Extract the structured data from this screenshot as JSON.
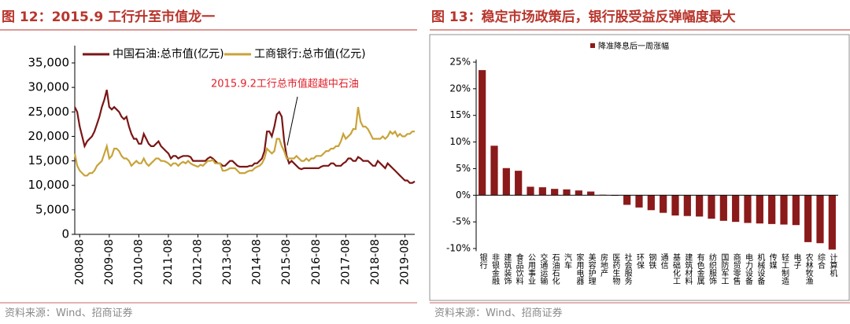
{
  "chart_data": [
    {
      "type": "line",
      "title": "图 12：2015.9 工行升至市值龙一",
      "source": "资料来源：Wind、招商证券",
      "annotation": "2015.9.2工行总市值超越中石油",
      "x": [
        "2008-06",
        "2008-07",
        "2008-08",
        "2008-09",
        "2008-10",
        "2008-11",
        "2008-12",
        "2009-01",
        "2009-02",
        "2009-03",
        "2009-04",
        "2009-05",
        "2009-06",
        "2009-07",
        "2009-08",
        "2009-09",
        "2009-10",
        "2009-11",
        "2009-12",
        "2010-01",
        "2010-02",
        "2010-03",
        "2010-04",
        "2010-05",
        "2010-06",
        "2010-07",
        "2010-08",
        "2010-09",
        "2010-10",
        "2010-11",
        "2010-12",
        "2011-01",
        "2011-02",
        "2011-03",
        "2011-04",
        "2011-05",
        "2011-06",
        "2011-07",
        "2011-08",
        "2011-09",
        "2011-10",
        "2011-11",
        "2011-12",
        "2012-01",
        "2012-02",
        "2012-03",
        "2012-04",
        "2012-05",
        "2012-06",
        "2012-07",
        "2012-08",
        "2012-09",
        "2012-10",
        "2012-11",
        "2012-12",
        "2013-01",
        "2013-02",
        "2013-03",
        "2013-04",
        "2013-05",
        "2013-06",
        "2013-07",
        "2013-08",
        "2013-09",
        "2013-10",
        "2013-11",
        "2013-12",
        "2014-01",
        "2014-02",
        "2014-03",
        "2014-04",
        "2014-05",
        "2014-06",
        "2014-07",
        "2014-08",
        "2014-09",
        "2014-10",
        "2014-11",
        "2014-12",
        "2015-01",
        "2015-02",
        "2015-03",
        "2015-04",
        "2015-05",
        "2015-06",
        "2015-07",
        "2015-08",
        "2015-09",
        "2015-10",
        "2015-11",
        "2015-12",
        "2016-01",
        "2016-02",
        "2016-03",
        "2016-04",
        "2016-05",
        "2016-06",
        "2016-07",
        "2016-08",
        "2016-09",
        "2016-10",
        "2016-11",
        "2016-12",
        "2017-01",
        "2017-02",
        "2017-03",
        "2017-04",
        "2017-05",
        "2017-06",
        "2017-07",
        "2017-08",
        "2017-09",
        "2017-10",
        "2017-11",
        "2017-12",
        "2018-01",
        "2018-02",
        "2018-03",
        "2018-04",
        "2018-05",
        "2018-06",
        "2018-07",
        "2018-08",
        "2018-09",
        "2018-10",
        "2018-11",
        "2018-12",
        "2019-01",
        "2019-02",
        "2019-03",
        "2019-04",
        "2019-05",
        "2019-06",
        "2019-07",
        "2019-08",
        "2019-09",
        "2019-10",
        "2019-11",
        "2019-12"
      ],
      "xlim": [
        "2008-06",
        "2019-12"
      ],
      "xticks": [
        "2008-08",
        "2009-08",
        "2010-08",
        "2011-08",
        "2012-08",
        "2013-08",
        "2014-08",
        "2015-08",
        "2016-08",
        "2017-08",
        "2018-08",
        "2019-08"
      ],
      "ylim": [
        0,
        35000
      ],
      "yticks": [
        0,
        {
          "value": 5000,
          "label": "5,000"
        },
        {
          "value": 10000,
          "label": "10,000"
        },
        {
          "value": 15000,
          "label": "15,000"
        },
        {
          "value": 20000,
          "label": "20,000"
        },
        {
          "value": 25000,
          "label": "25,000"
        },
        {
          "value": 30000,
          "label": "30,000"
        },
        {
          "value": 35000,
          "label": "35,000"
        }
      ],
      "series": [
        {
          "name": "中国石油:总市值(亿元)",
          "color": "#7a1616",
          "values": [
            26000,
            25000,
            22000,
            20000,
            18000,
            19000,
            19500,
            20000,
            21000,
            22500,
            24000,
            26000,
            27500,
            29500,
            26000,
            25500,
            26000,
            25500,
            25000,
            24000,
            23500,
            24000,
            22000,
            20500,
            19500,
            19500,
            18500,
            18500,
            20500,
            19500,
            18500,
            18000,
            18000,
            18500,
            19000,
            18000,
            17500,
            17000,
            16500,
            15500,
            16000,
            16000,
            15500,
            15800,
            16000,
            16000,
            16000,
            15800,
            15000,
            15000,
            15000,
            15000,
            15000,
            15000,
            15500,
            15800,
            15500,
            15000,
            14500,
            14500,
            14000,
            14000,
            14500,
            15000,
            15000,
            14500,
            14000,
            13800,
            13800,
            13800,
            13800,
            14000,
            14000,
            14500,
            14500,
            15000,
            15500,
            17000,
            21000,
            21000,
            20000,
            22000,
            24500,
            25000,
            24000,
            19000,
            16000,
            14500,
            15000,
            14500,
            14000,
            13500,
            13300,
            13500,
            13500,
            13500,
            13500,
            13500,
            13500,
            13500,
            13800,
            14000,
            14000,
            14000,
            14500,
            14500,
            14000,
            14000,
            14000,
            14500,
            14800,
            15500,
            15500,
            15000,
            15000,
            15800,
            15500,
            15000,
            15000,
            15000,
            14500,
            14000,
            14000,
            15000,
            14500,
            14000,
            13500,
            14500,
            14000,
            13500,
            13000,
            12500,
            12000,
            11500,
            11000,
            11000,
            10500,
            10500,
            10800
          ]
        },
        {
          "name": "工商银行:总市值(亿元)",
          "color": "#c9a33a",
          "values": [
            16500,
            14000,
            13000,
            12500,
            12000,
            12000,
            12500,
            12500,
            13000,
            14000,
            14500,
            15000,
            16500,
            18000,
            15500,
            16000,
            17500,
            17500,
            17000,
            16000,
            15500,
            15500,
            15000,
            14000,
            14500,
            15000,
            14500,
            14500,
            15500,
            14500,
            14000,
            14500,
            15000,
            15500,
            15500,
            15000,
            15000,
            14800,
            14500,
            14000,
            14500,
            14500,
            14000,
            14500,
            14800,
            14500,
            15000,
            14500,
            14200,
            14000,
            13800,
            14200,
            14000,
            14500,
            15000,
            15000,
            15200,
            14500,
            14500,
            14500,
            13000,
            13000,
            13200,
            13500,
            13500,
            13500,
            13000,
            12500,
            12500,
            12500,
            12800,
            13000,
            13000,
            13500,
            13800,
            14000,
            14500,
            15500,
            17500,
            17000,
            16500,
            17000,
            19500,
            19500,
            18000,
            17000,
            15500,
            15500,
            15500,
            15500,
            16000,
            15500,
            15000,
            15000,
            15500,
            15000,
            15500,
            15500,
            16000,
            16000,
            16000,
            16500,
            17000,
            17000,
            17500,
            17500,
            18000,
            18000,
            19000,
            20500,
            19500,
            20000,
            20500,
            21500,
            21500,
            26000,
            23000,
            22000,
            22000,
            21500,
            20500,
            19500,
            19500,
            19500,
            19500,
            20000,
            19500,
            20000,
            21000,
            20500,
            21000,
            20000,
            20500,
            20000,
            20000,
            20500,
            20500,
            21000,
            21000
          ]
        }
      ]
    },
    {
      "type": "bar",
      "title": "图 13：稳定市场政策后，银行股受益反弹幅度最大",
      "source": "资料来源：Wind、招商证券",
      "categories": [
        "银行",
        "非银金融",
        "建筑装饰",
        "食品饮料",
        "公用事业",
        "交通运输",
        "石油石化",
        "汽车",
        "家用电器",
        "美容护理",
        "房地产",
        "医药生物",
        "社会服务",
        "环保",
        "钢铁",
        "通信",
        "基础化工",
        "建筑材料",
        "有色金属",
        "纺织服饰",
        "国防军工",
        "商贸零售",
        "电力设备",
        "机械设备",
        "传媒",
        "轻工制造",
        "电子",
        "农林牧渔",
        "综合",
        "计算机"
      ],
      "ylim": [
        -10.5,
        25.5
      ],
      "yticks": [
        {
          "value": -10,
          "label": "-10%"
        },
        {
          "value": -5,
          "label": "-5%"
        },
        {
          "value": 0,
          "label": "0%"
        },
        {
          "value": 5,
          "label": "5%"
        },
        {
          "value": 10,
          "label": "10%"
        },
        {
          "value": 15,
          "label": "15%"
        },
        {
          "value": 20,
          "label": "20%"
        },
        {
          "value": 25,
          "label": "25%"
        }
      ],
      "series": [
        {
          "name": "降准降息后一周涨幅",
          "color": "#8b1a1a",
          "values": [
            23.5,
            9.3,
            5.1,
            4.6,
            1.6,
            1.5,
            1.2,
            1.1,
            0.9,
            0.7,
            0.1,
            -0.1,
            -1.8,
            -2.3,
            -2.8,
            -3.3,
            -3.8,
            -3.9,
            -4.0,
            -4.4,
            -4.8,
            -5.0,
            -5.2,
            -5.3,
            -5.4,
            -5.5,
            -5.6,
            -8.8,
            -9.0,
            -10.2
          ]
        }
      ]
    }
  ]
}
